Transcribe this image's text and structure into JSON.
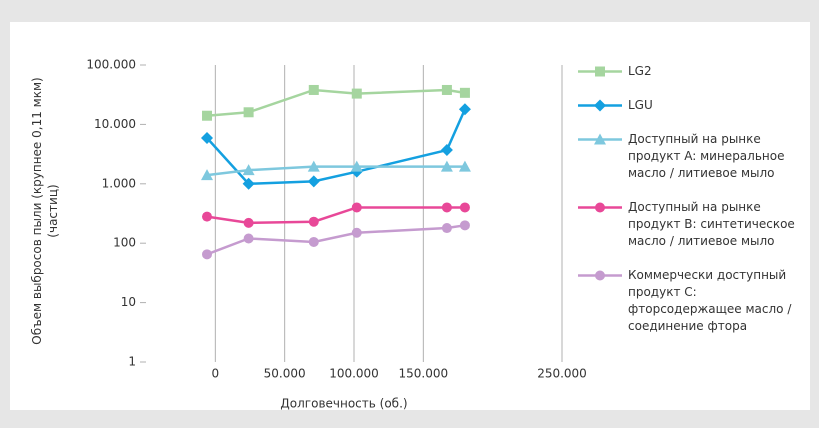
{
  "chart_data": {
    "type": "line",
    "y_label": "Объем выбросов пыли (крупнее 0,11 мкм) (частиц)",
    "x_label": "Долговечность (об.)",
    "log_y": true,
    "grid": "x",
    "xlim": [
      -50000,
      250000
    ],
    "xticks": [
      0,
      {
        "value": 50000,
        "label": "50.000"
      },
      {
        "value": 100000,
        "label": "100.000"
      },
      {
        "value": 150000,
        "label": "150.000"
      },
      {
        "value": 250000,
        "label": "250.000"
      }
    ],
    "ylim": [
      1,
      100000
    ],
    "yticks": [
      1,
      10,
      100,
      {
        "value": 1000,
        "label": "1.000"
      },
      {
        "value": 10000,
        "label": "10.000"
      },
      {
        "value": 100000,
        "label": "100.000"
      }
    ],
    "x": [
      -6000,
      24000,
      71000,
      102000,
      167000,
      180000
    ],
    "series": [
      {
        "name": "LG2",
        "color": "#a5d59f",
        "marker": "square",
        "values": [
          14000,
          16000,
          38000,
          33000,
          38000,
          34000
        ]
      },
      {
        "name": "LGU",
        "color": "#14a0e0",
        "marker": "diamond",
        "values": [
          5900,
          1000,
          1100,
          1600,
          3700,
          18000
        ]
      },
      {
        "name": "Доступный на рынке продукт A: минеральное масло / литиевое мыло",
        "color": "#7ec8de",
        "marker": "triangle",
        "values": [
          1400,
          1700,
          1950,
          1950,
          1950,
          1950
        ]
      },
      {
        "name": "Доступный на рынке продукт B: синтетическое масло / литиевое мыло",
        "color": "#e84898",
        "marker": "circle",
        "values": [
          280,
          220,
          230,
          400,
          400,
          400
        ]
      },
      {
        "name": "Коммерчески доступный продукт C: фторсодержащее масло / соединение фтора",
        "color": "#c59bcf",
        "marker": "circle",
        "values": [
          65,
          120,
          105,
          150,
          180,
          200
        ]
      }
    ]
  }
}
